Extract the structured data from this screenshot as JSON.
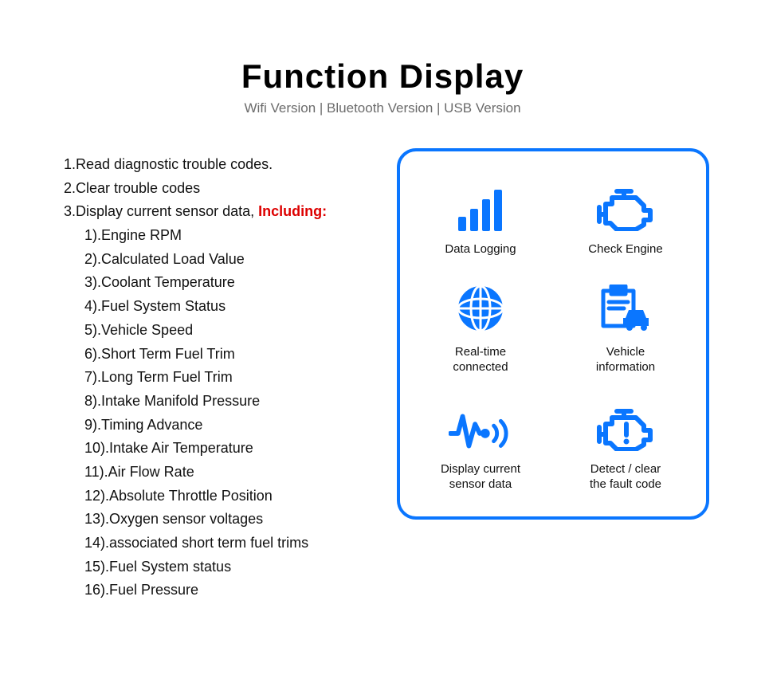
{
  "header": {
    "title": "Function Display",
    "subtitle": "Wifi Version | Bluetooth Version | USB Version"
  },
  "list": {
    "item1": "1.Read diagnostic trouble codes.",
    "item2": "2.Clear trouble codes",
    "item3_prefix": "3.Display current sensor data, ",
    "item3_highlight": "Including:",
    "sub": {
      "s1": "1).Engine RPM",
      "s2": "2).Calculated Load Value",
      "s3": "3).Coolant Temperature",
      "s4": "4).Fuel System Status",
      "s5": "5).Vehicle Speed",
      "s6": "6).Short Term Fuel Trim",
      "s7": "7).Long Term Fuel Trim",
      "s8": "8).Intake Manifold Pressure",
      "s9": "9).Timing Advance",
      "s10": "10).Intake Air Temperature",
      "s11": "11).Air Flow Rate",
      "s12": "12).Absolute Throttle Position",
      "s13": "13).Oxygen sensor voltages",
      "s14": "14).associated short term fuel trims",
      "s15": "15).Fuel System status",
      "s16": "16).Fuel Pressure"
    }
  },
  "panel": {
    "border_color": "#0a76ff",
    "icon_color": "#0a76ff",
    "features": {
      "f1": "Data Logging",
      "f2": "Check Engine",
      "f3": "Real-time\nconnected",
      "f4": "Vehicle\ninformation",
      "f5": "Display current\nsensor data",
      "f6": "Detect / clear\nthe fault code"
    }
  }
}
